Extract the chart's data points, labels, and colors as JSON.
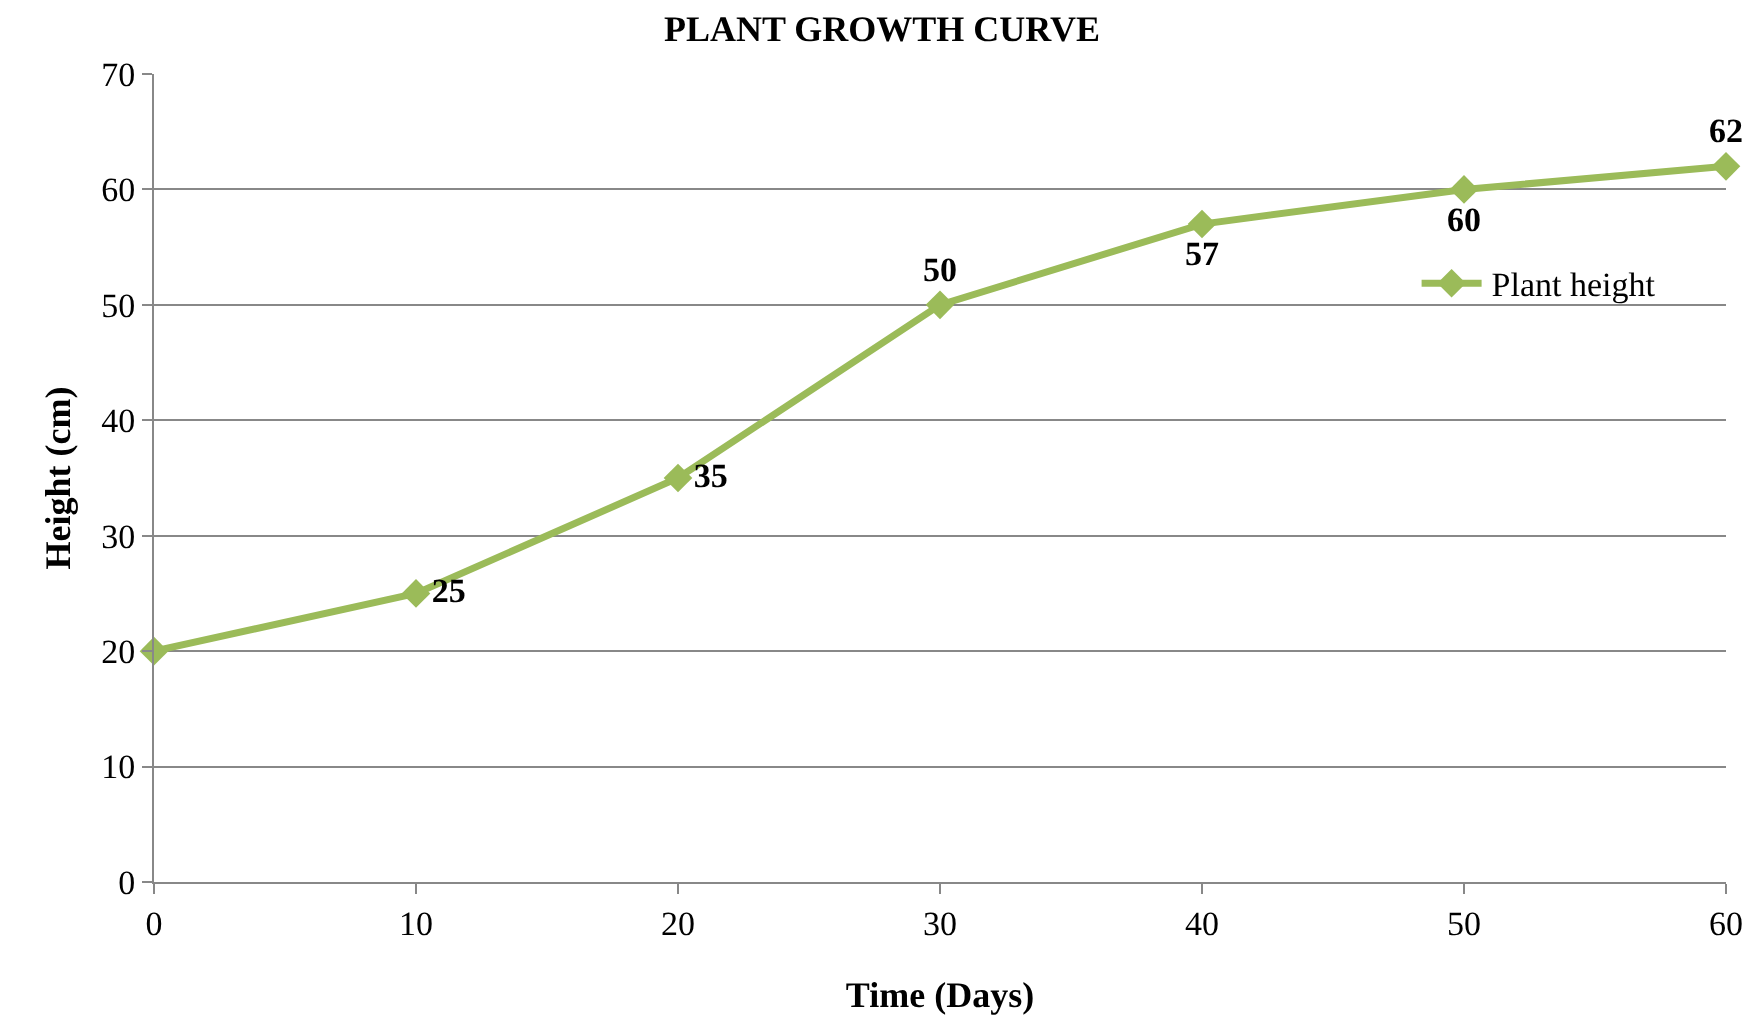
{
  "chart_data": {
    "type": "line",
    "title": "PLANT GROWTH CURVE",
    "xlabel": "Time (Days)",
    "ylabel": "Height (cm)",
    "x": [
      0,
      10,
      20,
      30,
      40,
      50,
      60
    ],
    "series": [
      {
        "name": "Plant height",
        "color": "#9bbb59",
        "values": [
          20,
          25,
          35,
          50,
          57,
          60,
          62
        ],
        "value_labels": [
          null,
          "25",
          "35",
          "50",
          "57",
          "60",
          "62"
        ]
      }
    ],
    "xlim": [
      0,
      60
    ],
    "xticks": [
      0,
      10,
      20,
      30,
      40,
      50,
      60
    ],
    "ylim": [
      0,
      70
    ],
    "yticks": [
      0,
      10,
      20,
      30,
      40,
      50,
      60,
      70
    ],
    "grid": "y",
    "legend": "right",
    "marker": "diamond",
    "line_style": "solid"
  }
}
